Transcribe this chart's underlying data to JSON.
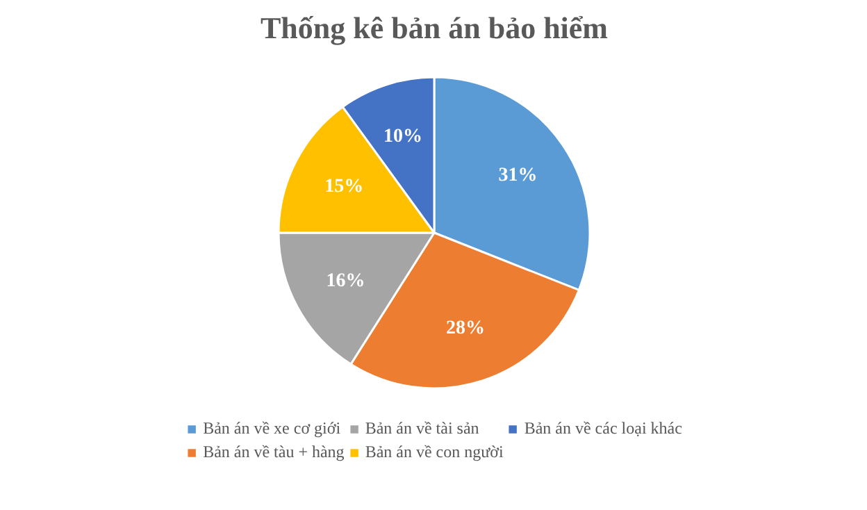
{
  "chart_data": {
    "type": "pie",
    "title": "Thống kê bản án bảo hiểm",
    "categories": [
      "Bản án về xe cơ giới",
      "Bản án về tàu + hàng",
      "Bản án về tài sản",
      "Bản án về con người",
      "Bản án về các loại khác"
    ],
    "values": [
      31,
      28,
      16,
      15,
      10
    ],
    "colors": [
      "#5b9bd5",
      "#ed7d31",
      "#a5a5a5",
      "#ffc000",
      "#4472c4"
    ],
    "value_labels": [
      "31%",
      "28%",
      "16%",
      "15%",
      "10%"
    ],
    "legend": "bottom"
  }
}
